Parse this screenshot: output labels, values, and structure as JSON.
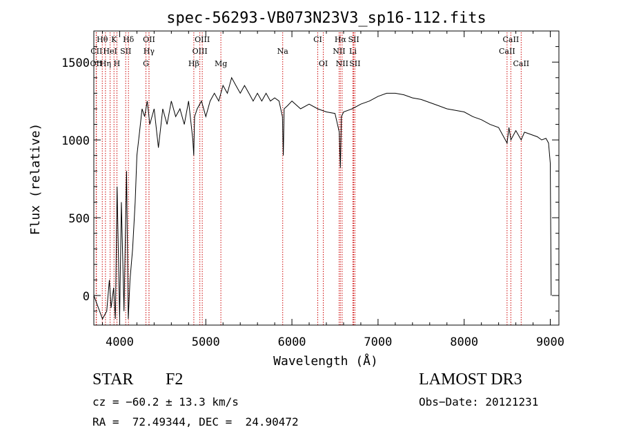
{
  "chart_data": {
    "type": "line",
    "title": "spec-56293-VB073N23V3_sp16-112.fits",
    "xlabel": "Wavelength (Å)",
    "ylabel": "Flux (relative)",
    "xlim": [
      3700,
      9100
    ],
    "ylim": [
      -190,
      1700
    ],
    "xticks": [
      4000,
      5000,
      6000,
      7000,
      8000,
      9000
    ],
    "yticks": [
      0,
      500,
      1000,
      1500
    ],
    "grid": false,
    "legend": "none",
    "line_color": "#000000",
    "marker_color": "#cc0000",
    "series": [
      {
        "x": [
          3700,
          3800,
          3850,
          3880,
          3900,
          3930,
          3950,
          3970,
          4000,
          4020,
          4050,
          4080,
          4100,
          4120,
          4150,
          4180,
          4200,
          4230,
          4260,
          4290,
          4320,
          4350,
          4400,
          4450,
          4500,
          4550,
          4600,
          4650,
          4700,
          4750,
          4800,
          4850,
          4860,
          4870,
          4900,
          4950,
          5000,
          5050,
          5100,
          5150,
          5200,
          5250,
          5300,
          5350,
          5400,
          5450,
          5500,
          5550,
          5600,
          5650,
          5700,
          5750,
          5800,
          5850,
          5890,
          5900,
          5910,
          5950,
          6000,
          6100,
          6200,
          6300,
          6400,
          6500,
          6550,
          6563,
          6575,
          6600,
          6700,
          6800,
          6900,
          7000,
          7100,
          7200,
          7300,
          7400,
          7500,
          7600,
          7700,
          7800,
          7900,
          8000,
          8100,
          8200,
          8300,
          8400,
          8498,
          8520,
          8542,
          8600,
          8662,
          8700,
          8800,
          8850,
          8900,
          8950,
          8980,
          9000,
          9010
        ],
        "y": [
          0,
          -150,
          -100,
          100,
          -80,
          50,
          -150,
          700,
          -150,
          600,
          -100,
          800,
          -150,
          100,
          300,
          600,
          900,
          1050,
          1200,
          1150,
          1250,
          1100,
          1200,
          950,
          1200,
          1100,
          1250,
          1150,
          1200,
          1100,
          1250,
          1000,
          900,
          1150,
          1200,
          1250,
          1150,
          1250,
          1300,
          1250,
          1350,
          1300,
          1400,
          1350,
          1300,
          1350,
          1300,
          1250,
          1300,
          1250,
          1300,
          1250,
          1270,
          1250,
          1150,
          900,
          1200,
          1220,
          1250,
          1200,
          1230,
          1200,
          1180,
          1170,
          1050,
          820,
          1150,
          1180,
          1200,
          1230,
          1250,
          1280,
          1300,
          1300,
          1290,
          1270,
          1260,
          1240,
          1220,
          1200,
          1190,
          1180,
          1150,
          1130,
          1100,
          1080,
          980,
          1080,
          1000,
          1060,
          1000,
          1050,
          1030,
          1020,
          1000,
          1010,
          980,
          850,
          0
        ]
      }
    ],
    "lines": [
      {
        "name": "Hθ",
        "x": 3798,
        "row": 0
      },
      {
        "name": "K",
        "x": 3934,
        "row": 0
      },
      {
        "name": "Hδ",
        "x": 4102,
        "row": 0
      },
      {
        "name": "OII",
        "x": 4341,
        "row": 0
      },
      {
        "name": "OIII",
        "x": 4959,
        "row": 0
      },
      {
        "name": "CI",
        "x": 6300,
        "row": 0
      },
      {
        "name": "Hα",
        "x": 6563,
        "row": 0
      },
      {
        "name": "SII",
        "x": 6717,
        "row": 0
      },
      {
        "name": "CaII",
        "x": 8542,
        "row": 0
      },
      {
        "name": "CII",
        "x": 3730,
        "row": 1
      },
      {
        "name": "HeI",
        "x": 3889,
        "row": 1
      },
      {
        "name": "SII",
        "x": 4070,
        "row": 1
      },
      {
        "name": "Hγ",
        "x": 4340,
        "row": 1
      },
      {
        "name": "OIII",
        "x": 4931,
        "row": 1
      },
      {
        "name": "Na",
        "x": 5893,
        "row": 1
      },
      {
        "name": "NII",
        "x": 6548,
        "row": 1
      },
      {
        "name": "Li",
        "x": 6708,
        "row": 1
      },
      {
        "name": "CaII",
        "x": 8498,
        "row": 1
      },
      {
        "name": "OII",
        "x": 3727,
        "row": 2
      },
      {
        "name": "Hη",
        "x": 3835,
        "row": 2
      },
      {
        "name": "H",
        "x": 3968,
        "row": 2
      },
      {
        "name": "G",
        "x": 4305,
        "row": 2
      },
      {
        "name": "Hβ",
        "x": 4861,
        "row": 2
      },
      {
        "name": "Mg",
        "x": 5175,
        "row": 2
      },
      {
        "name": "OI",
        "x": 6364,
        "row": 2
      },
      {
        "name": "NII",
        "x": 6583,
        "row": 2
      },
      {
        "name": "SII",
        "x": 6731,
        "row": 2
      },
      {
        "name": "CaII",
        "x": 8662,
        "row": 2
      }
    ]
  },
  "info": {
    "object_class": "STAR",
    "subclass": "F2",
    "survey": "LAMOST DR3",
    "redshift": "cz = −60.2 ± 13.3 km/s",
    "obs_date": "Obs−Date: 20121231",
    "coords": "RA =  72.49344, DEC =  24.90472"
  }
}
